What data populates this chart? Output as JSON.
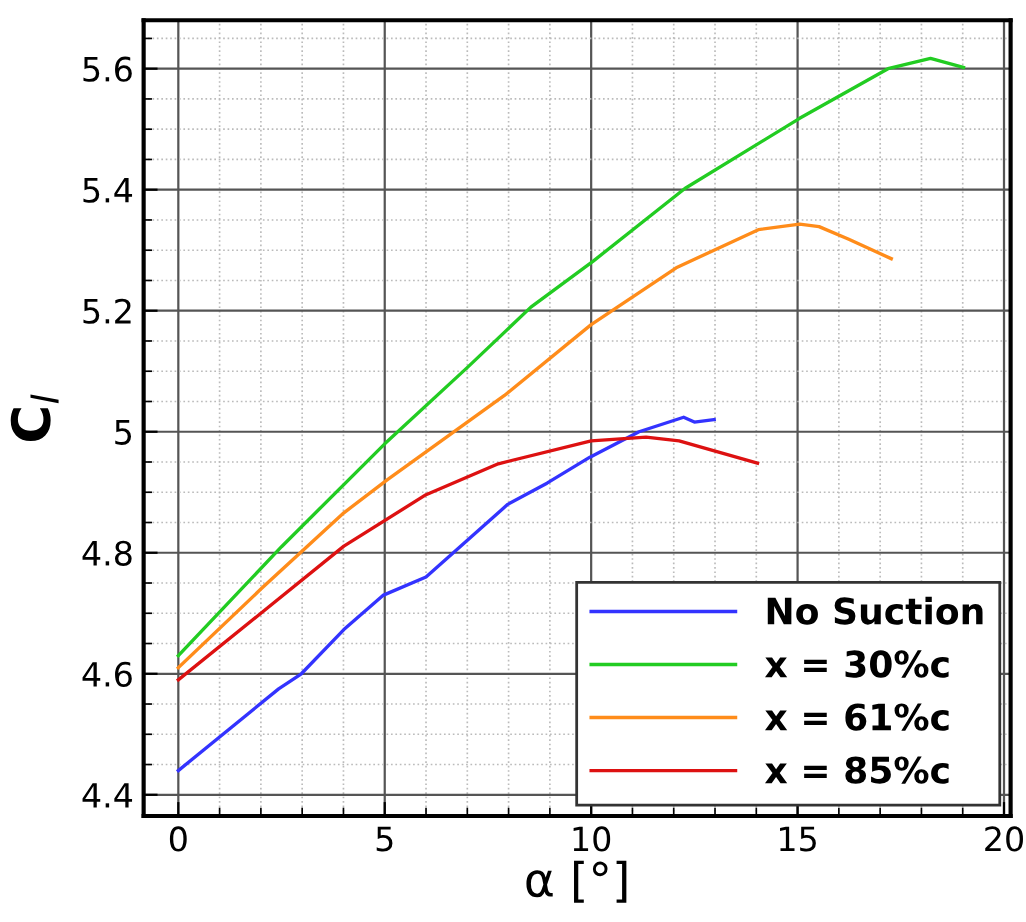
{
  "chart_data": {
    "type": "line",
    "xlabel": "α [°]",
    "ylabel": "C$_{l}$",
    "xlim": [
      -0.84,
      20.16
    ],
    "xticks": [
      0,
      5,
      10,
      15,
      20
    ],
    "ylim": [
      4.365,
      5.68
    ],
    "yticks": [
      4.4,
      4.6,
      4.8,
      5,
      5.2,
      5.4,
      5.6
    ],
    "grid": true,
    "legend": "bottom right",
    "marker": "none",
    "line_style": "solid",
    "series": [
      {
        "name": "No Suction",
        "color": "#3333ff",
        "x": [
          0,
          2.43,
          2.98,
          4.01,
          4.97,
          6.0,
          7.98,
          8.93,
          9.97,
          11.16,
          12.24,
          12.5,
          12.98
        ],
        "values": [
          4.44,
          4.575,
          4.6,
          4.673,
          4.73,
          4.76,
          4.88,
          4.915,
          4.958,
          5.0,
          5.024,
          5.016,
          5.02
        ]
      },
      {
        "name": "x = 30%c",
        "color": "#22cc22",
        "x": [
          0,
          2.5,
          5,
          7.03,
          8.54,
          10.05,
          12.27,
          15.05,
          17.19,
          18.22,
          19.02
        ],
        "values": [
          4.63,
          4.81,
          4.98,
          5.108,
          5.206,
          5.282,
          5.402,
          5.518,
          5.6,
          5.617,
          5.602
        ]
      },
      {
        "name": "x = 61%c",
        "color": "#ff8c1a",
        "x": [
          0,
          2,
          4.01,
          5.05,
          7.9,
          10.0,
          12.06,
          14.05,
          15.05,
          15.52,
          16.24,
          17.27
        ],
        "values": [
          4.61,
          4.74,
          4.866,
          4.92,
          5.06,
          5.177,
          5.271,
          5.334,
          5.343,
          5.339,
          5.318,
          5.286
        ]
      },
      {
        "name": "x = 85%c",
        "color": "#dd1111",
        "x": [
          0,
          2,
          4.01,
          6.0,
          7.75,
          10.0,
          11.33,
          12.13,
          14.03
        ],
        "values": [
          4.59,
          4.7,
          4.811,
          4.896,
          4.947,
          4.985,
          4.991,
          4.985,
          4.948
        ]
      }
    ]
  }
}
